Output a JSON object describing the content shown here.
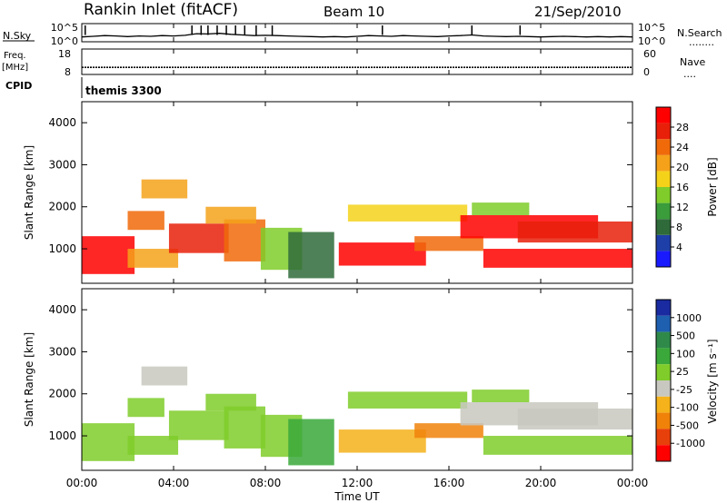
{
  "header": {
    "station": "Rankin Inlet (fitACF)",
    "beam": "Beam 10",
    "date": "21/Sep/2010"
  },
  "noise_panel": {
    "left_label": "N.Sky",
    "left_ticks": [
      "10^5",
      "10^0"
    ],
    "right_ticks": [
      "10^5",
      "10^0"
    ],
    "right_label": "N.Search",
    "right_legend_dots": "........"
  },
  "freq_panel": {
    "left_label_1": "Freq.",
    "left_label_2": "[MHz]",
    "left_ticks": [
      "18",
      "8"
    ],
    "right_ticks": [
      "60",
      "0"
    ],
    "right_label": "Nave",
    "right_legend_dots": "...."
  },
  "cpid": {
    "label": "CPID",
    "value": "themis 3300"
  },
  "range_axis": {
    "label": "Slant Range [km]",
    "ticks": [
      "1000",
      "2000",
      "3000",
      "4000"
    ],
    "range": [
      180,
      4500
    ]
  },
  "time_axis": {
    "label": "Time UT",
    "ticks": [
      "00:00",
      "04:00",
      "08:00",
      "12:00",
      "16:00",
      "20:00",
      "00:00"
    ],
    "range_hours": [
      0,
      24
    ]
  },
  "power_scale": {
    "label": "Power [dB]",
    "ticks": [
      "4",
      "8",
      "12",
      "16",
      "20",
      "24",
      "28"
    ],
    "colors": [
      "#1a1aff",
      "#1f3fa8",
      "#2f6b3a",
      "#3a9c3a",
      "#7fcc2a",
      "#f5d21a",
      "#f5a21a",
      "#f06a0a",
      "#e8200a",
      "#ff0000"
    ]
  },
  "velocity_scale": {
    "label": "Velocity [m s⁻¹]",
    "ticks": [
      "1000",
      "500",
      "100",
      "25",
      "-25",
      "-100",
      "-500",
      "-1000"
    ],
    "colors": [
      "#1a2aa0",
      "#1f5fb0",
      "#2f8a4a",
      "#3aa83a",
      "#7fcc2a",
      "#c8c8c0",
      "#f5b21a",
      "#f0820a",
      "#e8400a",
      "#ff0000"
    ]
  },
  "chart_data": [
    {
      "type": "line",
      "title": "N.Sky / N.Search",
      "x_hours": [
        0,
        0.5,
        1,
        1.5,
        2,
        2.5,
        3,
        3.5,
        4,
        4.5,
        5,
        5.5,
        6,
        6.5,
        7,
        7.5,
        8,
        8.5,
        9,
        9.5,
        10,
        10.5,
        11,
        11.5,
        12,
        12.5,
        13,
        13.5,
        14,
        14.5,
        15,
        15.5,
        16,
        16.5,
        17,
        17.5,
        18,
        18.5,
        19,
        19.5,
        20,
        20.5,
        21,
        21.5,
        22,
        22.5,
        23,
        23.5,
        24
      ],
      "values_log": [
        1.2,
        1.4,
        1.6,
        1.5,
        1.3,
        1.5,
        1.4,
        1.6,
        1.5,
        1.7,
        2.2,
        2.1,
        2.3,
        2.0,
        1.8,
        1.6,
        1.7,
        1.6,
        1.5,
        1.4,
        1.3,
        1.2,
        1.3,
        1.2,
        1.4,
        1.6,
        1.5,
        1.4,
        1.6,
        1.5,
        1.4,
        1.3,
        1.5,
        1.6,
        1.8,
        1.5,
        1.4,
        1.3,
        1.4,
        1.3,
        1.2,
        1.3,
        1.4,
        1.3,
        1.2,
        1.3,
        1.2,
        1.3,
        1.2
      ],
      "spikes_hours": [
        0.15,
        4.8,
        5.2,
        5.5,
        5.9,
        6.3,
        6.7,
        7.1,
        7.6,
        8.3,
        13.1,
        17.0,
        19.1
      ]
    },
    {
      "type": "line",
      "title": "Freq. / Nave",
      "x_hours": [
        0,
        24
      ],
      "freq_mhz": [
        10.8,
        10.8
      ],
      "ylim": [
        8,
        18
      ]
    },
    {
      "type": "heatmap",
      "title": "Power [dB]",
      "x_range_hours": [
        0,
        24
      ],
      "y_range_km": [
        180,
        4500
      ],
      "clim": [
        0,
        30
      ],
      "blobs": [
        {
          "t0": 0.0,
          "t1": 2.3,
          "r0": 400,
          "r1": 1300,
          "value": 27
        },
        {
          "t0": 2.0,
          "t1": 4.2,
          "r0": 550,
          "r1": 1000,
          "value": 18
        },
        {
          "t0": 2.0,
          "t1": 3.6,
          "r0": 1450,
          "r1": 1900,
          "value": 22
        },
        {
          "t0": 2.6,
          "t1": 4.6,
          "r0": 2200,
          "r1": 2650,
          "value": 20
        },
        {
          "t0": 3.8,
          "t1": 6.4,
          "r0": 900,
          "r1": 1600,
          "value": 26
        },
        {
          "t0": 6.2,
          "t1": 8.0,
          "r0": 700,
          "r1": 1700,
          "value": 22
        },
        {
          "t0": 5.4,
          "t1": 7.6,
          "r0": 1600,
          "r1": 2000,
          "value": 18
        },
        {
          "t0": 7.8,
          "t1": 9.6,
          "r0": 500,
          "r1": 1500,
          "value": 14
        },
        {
          "t0": 9.0,
          "t1": 11.0,
          "r0": 300,
          "r1": 1400,
          "value": 7
        },
        {
          "t0": 11.2,
          "t1": 15.0,
          "r0": 600,
          "r1": 1150,
          "value": 27
        },
        {
          "t0": 11.6,
          "t1": 16.8,
          "r0": 1650,
          "r1": 2050,
          "value": 15
        },
        {
          "t0": 14.5,
          "t1": 17.5,
          "r0": 950,
          "r1": 1300,
          "value": 22
        },
        {
          "t0": 16.5,
          "t1": 22.5,
          "r0": 1250,
          "r1": 1800,
          "value": 27
        },
        {
          "t0": 17.5,
          "t1": 24.0,
          "r0": 550,
          "r1": 1000,
          "value": 28
        },
        {
          "t0": 19.0,
          "t1": 24.0,
          "r0": 1150,
          "r1": 1650,
          "value": 25
        },
        {
          "t0": 17.0,
          "t1": 19.5,
          "r0": 1800,
          "r1": 2100,
          "value": 12
        }
      ]
    },
    {
      "type": "heatmap",
      "title": "Velocity [m s⁻¹]",
      "x_range_hours": [
        0,
        24
      ],
      "y_range_km": [
        180,
        4500
      ],
      "clim": [
        -1000,
        1000
      ],
      "blobs": [
        {
          "t0": 0.0,
          "t1": 2.3,
          "r0": 400,
          "r1": 1300,
          "value": 120
        },
        {
          "t0": 2.0,
          "t1": 4.2,
          "r0": 550,
          "r1": 1000,
          "value": 80
        },
        {
          "t0": 2.0,
          "t1": 3.6,
          "r0": 1450,
          "r1": 1900,
          "value": 60
        },
        {
          "t0": 2.6,
          "t1": 4.6,
          "r0": 2200,
          "r1": 2650,
          "value": 0
        },
        {
          "t0": 3.8,
          "t1": 6.4,
          "r0": 900,
          "r1": 1600,
          "value": 150
        },
        {
          "t0": 6.2,
          "t1": 8.0,
          "r0": 700,
          "r1": 1700,
          "value": 160
        },
        {
          "t0": 5.4,
          "t1": 7.6,
          "r0": 1600,
          "r1": 2000,
          "value": 40
        },
        {
          "t0": 7.8,
          "t1": 9.6,
          "r0": 500,
          "r1": 1500,
          "value": 90
        },
        {
          "t0": 9.0,
          "t1": 11.0,
          "r0": 300,
          "r1": 1400,
          "value": 300
        },
        {
          "t0": 11.2,
          "t1": 15.0,
          "r0": 600,
          "r1": 1150,
          "value": -300
        },
        {
          "t0": 11.6,
          "t1": 16.8,
          "r0": 1650,
          "r1": 2050,
          "value": 5
        },
        {
          "t0": 14.5,
          "t1": 17.5,
          "r0": 950,
          "r1": 1300,
          "value": -400
        },
        {
          "t0": 16.5,
          "t1": 22.5,
          "r0": 1250,
          "r1": 1800,
          "value": 0
        },
        {
          "t0": 17.5,
          "t1": 24.0,
          "r0": 550,
          "r1": 1000,
          "value": 50
        },
        {
          "t0": 19.0,
          "t1": 24.0,
          "r0": 1150,
          "r1": 1650,
          "value": -10
        },
        {
          "t0": 17.0,
          "t1": 19.5,
          "r0": 1800,
          "r1": 2100,
          "value": 10
        }
      ]
    }
  ]
}
